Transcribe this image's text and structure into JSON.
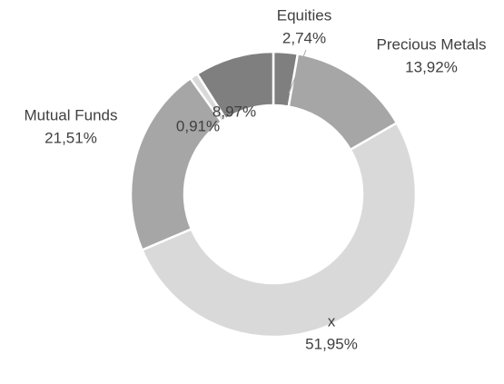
{
  "chart_data": {
    "type": "donut",
    "categories": [
      "Equities",
      "Precious Metals",
      "x",
      "Mutual Funds",
      null,
      null
    ],
    "values": [
      2.74,
      13.92,
      51.95,
      21.51,
      0.91,
      8.97
    ],
    "value_labels": [
      "2,74%",
      "13,92%",
      "51,95%",
      "21,51%",
      "0,91%",
      "8,97%"
    ],
    "colors": [
      "#7f7f7f",
      "#a6a6a6",
      "#d9d9d9",
      "#a6a6a6",
      "#d9d9d9",
      "#7f7f7f"
    ]
  }
}
